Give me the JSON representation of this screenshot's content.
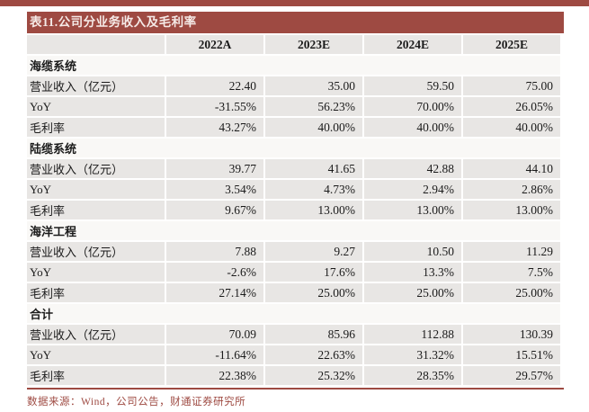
{
  "table": {
    "title": "表11.公司分业务收入及毛利率",
    "columns": [
      "2022A",
      "2023E",
      "2024E",
      "2025E"
    ],
    "sections": [
      {
        "name": "海缆系统",
        "rows": [
          {
            "label": "营业收入（亿元）",
            "values": [
              "22.40",
              "35.00",
              "59.50",
              "75.00"
            ]
          },
          {
            "label": "YoY",
            "values": [
              "-31.55%",
              "56.23%",
              "70.00%",
              "26.05%"
            ]
          },
          {
            "label": "毛利率",
            "values": [
              "43.27%",
              "40.00%",
              "40.00%",
              "40.00%"
            ]
          }
        ]
      },
      {
        "name": "陆缆系统",
        "rows": [
          {
            "label": "营业收入（亿元）",
            "values": [
              "39.77",
              "41.65",
              "42.88",
              "44.10"
            ]
          },
          {
            "label": "YoY",
            "values": [
              "3.54%",
              "4.73%",
              "2.94%",
              "2.86%"
            ]
          },
          {
            "label": "毛利率",
            "values": [
              "9.67%",
              "13.00%",
              "13.00%",
              "13.00%"
            ]
          }
        ]
      },
      {
        "name": "海洋工程",
        "rows": [
          {
            "label": "营业收入（亿元）",
            "values": [
              "7.88",
              "9.27",
              "10.50",
              "11.29"
            ]
          },
          {
            "label": "YoY",
            "values": [
              "-2.6%",
              "17.6%",
              "13.3%",
              "7.5%"
            ]
          },
          {
            "label": "毛利率",
            "values": [
              "27.14%",
              "25.00%",
              "25.00%",
              "25.00%"
            ]
          }
        ]
      },
      {
        "name": "合计",
        "rows": [
          {
            "label": "营业收入（亿元）",
            "values": [
              "70.09",
              "85.96",
              "112.88",
              "130.39"
            ]
          },
          {
            "label": "YoY",
            "values": [
              "-11.64%",
              "22.63%",
              "31.32%",
              "15.51%"
            ]
          },
          {
            "label": "毛利率",
            "values": [
              "22.38%",
              "25.32%",
              "28.35%",
              "29.57%"
            ]
          }
        ]
      }
    ]
  },
  "footer": {
    "source": "数据来源：Wind，公司公告，财通证券研究所"
  },
  "colors": {
    "accent": "#9e4a42",
    "row_bg": "#e8e6e4",
    "section_row_bg": "#f9f8f6",
    "title_text": "#f5eae7",
    "body_text": "#1b1b1b"
  }
}
